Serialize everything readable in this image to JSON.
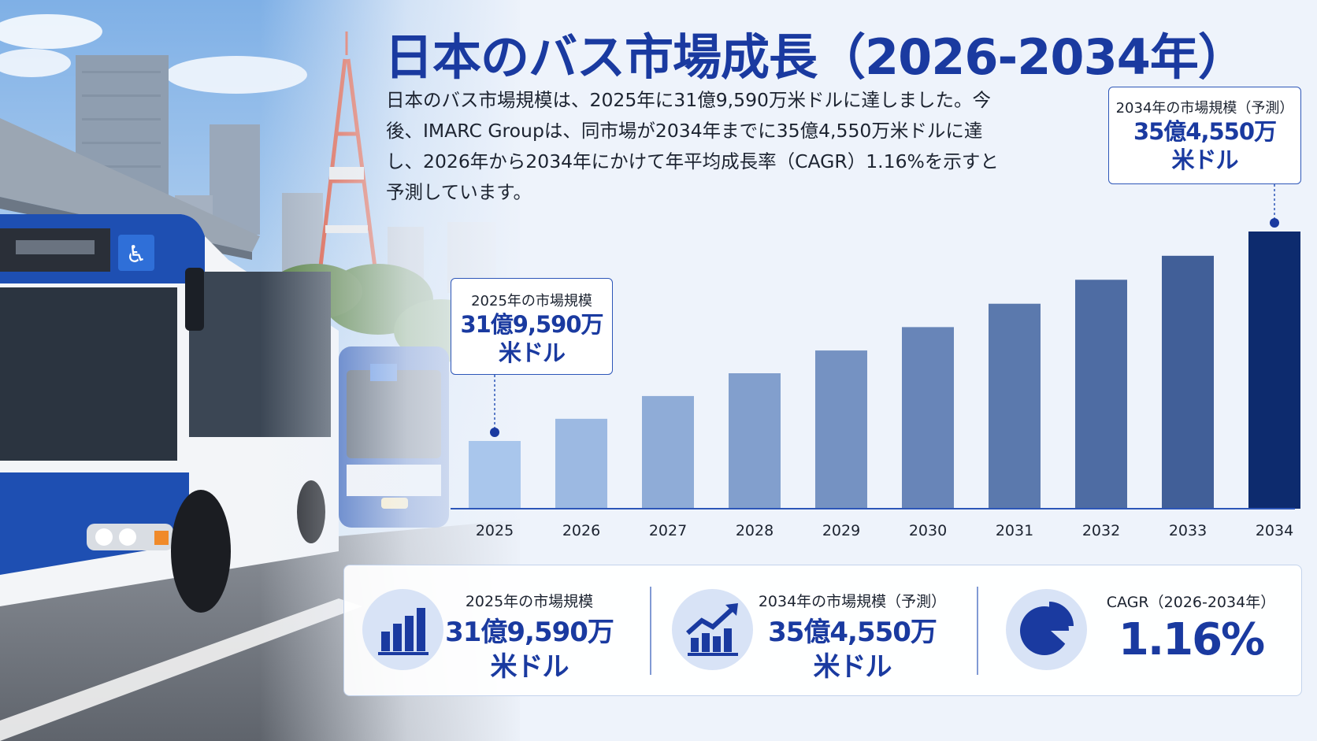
{
  "header": {
    "title": "日本のバス市場成長（2026-2034年）",
    "description": "日本のバス市場規模は、2025年に31億9,590万米ドルに達しました。今後、IMARC Groupは、同市場が2034年までに35億4,550万米ドルに達し、2026年から2034年にかけて年平均成長率（CAGR）1.16%を示すと予測しています。"
  },
  "callouts": {
    "start": {
      "label": "2025年の市場規模",
      "value_line1": "31億9,590万",
      "value_line2": "米ドル"
    },
    "end": {
      "label": "2034年の市場規模（予測）",
      "value_line1": "35億4,550万",
      "value_line2": "米ドル"
    }
  },
  "stats": {
    "start": {
      "label": "2025年の市場規模",
      "value_line1": "31億9,590万",
      "value_line2": "米ドル",
      "icon": "bar-chart-icon"
    },
    "end": {
      "label": "2034年の市場規模（予測）",
      "value_line1": "35億4,550万",
      "value_line2": "米ドル",
      "icon": "growth-chart-icon"
    },
    "cagr": {
      "label": "CAGR（2026-2034年）",
      "value": "1.16%",
      "icon": "pie-chart-icon"
    }
  },
  "colors": {
    "accent": "#1a3aa0",
    "bar_start": "#a9c6ec",
    "bar_end": "#0d2b6e"
  },
  "chart_data": {
    "type": "bar",
    "categories": [
      "2025",
      "2026",
      "2027",
      "2028",
      "2029",
      "2030",
      "2031",
      "2032",
      "2033",
      "2034"
    ],
    "values": [
      31.96,
      32.33,
      32.71,
      33.09,
      33.47,
      33.86,
      34.25,
      34.65,
      35.05,
      35.455
    ],
    "title": "",
    "xlabel": "",
    "ylabel": "",
    "grid": false
  }
}
